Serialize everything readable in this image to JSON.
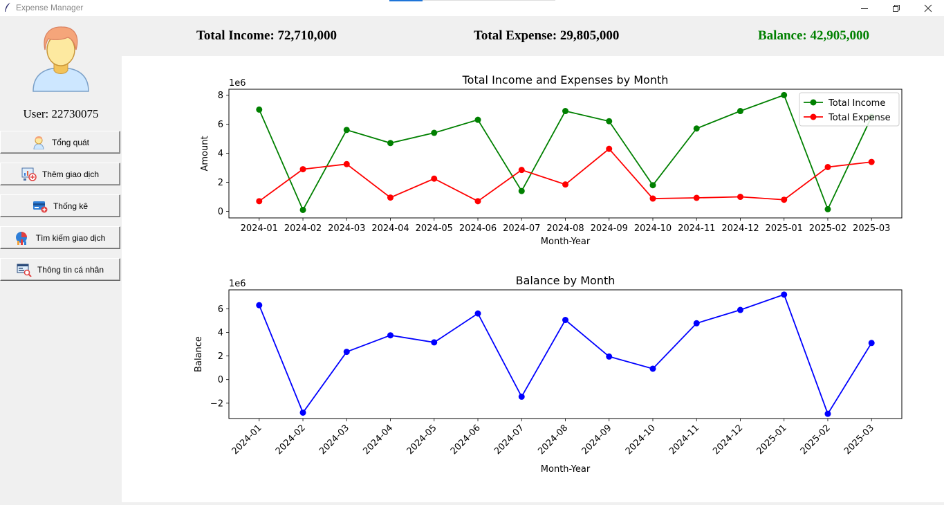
{
  "window": {
    "title": "Expense Manager"
  },
  "sidebar": {
    "user_label": "User: 22730075",
    "items": [
      {
        "label": "Tổng quát",
        "icon": "user-icon"
      },
      {
        "label": "Thêm giao dịch",
        "icon": "add-transaction-icon"
      },
      {
        "label": "Thống kê",
        "icon": "statistics-card-icon"
      },
      {
        "label": "Tìm kiếm giao dịch",
        "icon": "chart-search-icon"
      },
      {
        "label": "Thông tin cá nhân",
        "icon": "profile-info-icon"
      }
    ]
  },
  "summary": {
    "income": "Total Income: 72,710,000",
    "expense": "Total Expense: 29,805,000",
    "balance": "Balance: 42,905,000",
    "balance_color": "#008000"
  },
  "chart_data": [
    {
      "type": "line",
      "title": "Total Income and Expenses by Month",
      "xlabel": "Month-Year",
      "ylabel": "Amount",
      "offset_text": "1e6",
      "categories": [
        "2024-01",
        "2024-02",
        "2024-03",
        "2024-04",
        "2024-05",
        "2024-06",
        "2024-07",
        "2024-08",
        "2024-09",
        "2024-10",
        "2024-11",
        "2024-12",
        "2025-01",
        "2025-02",
        "2025-03"
      ],
      "ylim": [
        -0.45,
        8.4
      ],
      "yticks": [
        0,
        2,
        4,
        6,
        8
      ],
      "legend": "upper right",
      "series": [
        {
          "name": "Total Income",
          "color": "#008000",
          "values": [
            7.0,
            0.1,
            5.6,
            4.7,
            5.4,
            6.3,
            1.4,
            6.9,
            6.2,
            1.8,
            5.7,
            6.9,
            8.0,
            0.15,
            6.5
          ]
        },
        {
          "name": "Total Expense",
          "color": "#ff0000",
          "values": [
            0.7,
            2.9,
            3.25,
            0.95,
            2.25,
            0.7,
            2.85,
            1.85,
            4.3,
            0.88,
            0.93,
            1.0,
            0.8,
            3.05,
            3.4
          ]
        }
      ]
    },
    {
      "type": "line",
      "title": "Balance by Month",
      "xlabel": "Month-Year",
      "ylabel": "Balance",
      "offset_text": "1e6",
      "categories": [
        "2024-01",
        "2024-02",
        "2024-03",
        "2024-04",
        "2024-05",
        "2024-06",
        "2024-07",
        "2024-08",
        "2024-09",
        "2024-10",
        "2024-11",
        "2024-12",
        "2025-01",
        "2025-02",
        "2025-03"
      ],
      "ylim": [
        -3.3,
        7.6
      ],
      "yticks": [
        -2,
        0,
        2,
        4,
        6
      ],
      "xtick_rotation": 45,
      "series": [
        {
          "name": "",
          "color": "#0000ff",
          "values": [
            6.3,
            -2.8,
            2.35,
            3.75,
            3.15,
            5.6,
            -1.45,
            5.05,
            1.95,
            0.92,
            4.77,
            5.9,
            7.2,
            -2.9,
            3.1
          ]
        }
      ]
    }
  ]
}
